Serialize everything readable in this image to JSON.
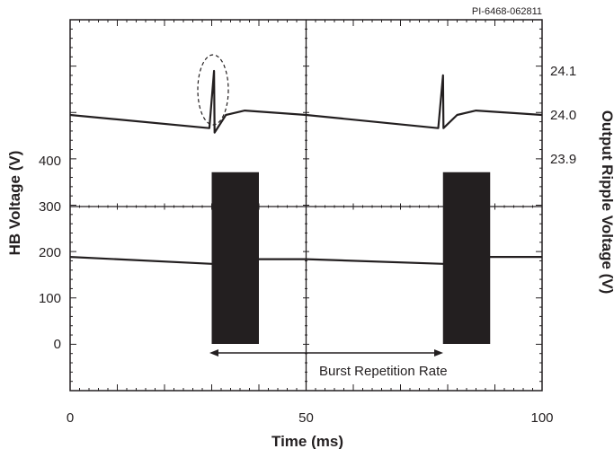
{
  "chart_data": {
    "type": "line",
    "figure_id": "PI-6468-062811",
    "xlabel": "Time (ms)",
    "ylabel_left": "HB Voltage (V)",
    "ylabel_right": "Output Ripple Voltage (V)",
    "xlim": [
      0,
      100
    ],
    "x_ticks": [
      "0",
      "50",
      "100"
    ],
    "y_left_ticks": [
      "0",
      "100",
      "200",
      "300",
      "400"
    ],
    "y_right_ticks": [
      "23.9",
      "24.0",
      "24.1"
    ],
    "annotation": "Burst Repetition Rate",
    "grid": "oscilloscope divisions (center crosshair)",
    "series": [
      {
        "axis": "right",
        "points": [
          [
            0,
            24.0
          ],
          [
            29.5,
            23.97
          ],
          [
            30.5,
            24.1
          ],
          [
            30.6,
            23.96
          ],
          [
            33,
            24.0
          ],
          [
            37,
            24.01
          ],
          [
            50,
            24.0
          ],
          [
            78,
            23.97
          ],
          [
            79,
            24.09
          ],
          [
            79.1,
            23.97
          ],
          [
            82,
            24.0
          ],
          [
            86,
            24.01
          ],
          [
            100,
            24.0
          ]
        ]
      },
      {
        "axis": "left",
        "points": [
          [
            0,
            190
          ],
          [
            30,
            175
          ],
          [
            40,
            185
          ],
          [
            50,
            185
          ],
          [
            79,
            175
          ],
          [
            89,
            190
          ],
          [
            100,
            190
          ]
        ],
        "bursts": [
          [
            30,
            40,
            0,
            375
          ],
          [
            79,
            89,
            0,
            375
          ]
        ]
      }
    ],
    "burst_interval_ms": [
      30,
      79
    ]
  }
}
